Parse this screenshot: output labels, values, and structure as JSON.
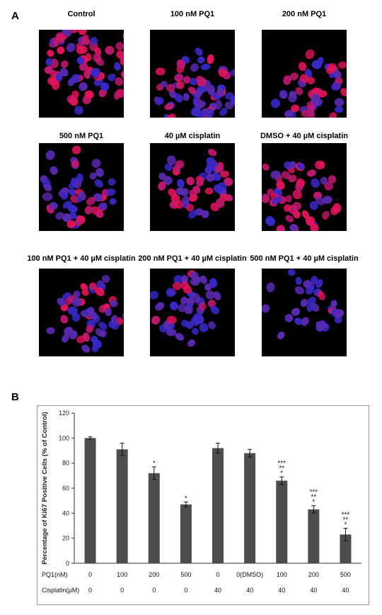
{
  "figure": {
    "panel_a_label": "A",
    "panel_b_label": "B"
  },
  "micrographs": [
    {
      "title": "Control",
      "red_ratio": 0.75,
      "density": "high"
    },
    {
      "title": "100 nM PQ1",
      "red_ratio": 0.35,
      "density": "high"
    },
    {
      "title": "200 nM PQ1",
      "red_ratio": 0.6,
      "density": "medium"
    },
    {
      "title": "500 nM PQ1",
      "red_ratio": 0.35,
      "density": "medium"
    },
    {
      "title": "40 µM cisplatin",
      "red_ratio": 0.6,
      "density": "medium"
    },
    {
      "title": "DMSO + 40 µM cisplatin",
      "red_ratio": 0.6,
      "density": "high"
    },
    {
      "title": "100 nM PQ1 + 40 µM cisplatin",
      "red_ratio": 0.25,
      "density": "medium"
    },
    {
      "title": "200 nM PQ1 + 40 µM cisplatin",
      "red_ratio": 0.15,
      "density": "medium"
    },
    {
      "title": "500 nM PQ1 + 40 µM cisplatin",
      "red_ratio": 0.1,
      "density": "low"
    }
  ],
  "chart_data": {
    "type": "bar",
    "ylabel": "Percentage of Ki67 Positive Cells (% of Control)",
    "ylim": [
      0,
      120
    ],
    "yticks": [
      0,
      20,
      40,
      60,
      80,
      100,
      120
    ],
    "bar_color": "#4d4d4d",
    "row_labels": [
      "PQ1(nM)",
      "Cisplatin(µM)"
    ],
    "pq1": [
      "0",
      "100",
      "200",
      "500",
      "0",
      "0(DMSO)",
      "100",
      "200",
      "500"
    ],
    "cisplatin": [
      "0",
      "0",
      "0",
      "0",
      "40",
      "40",
      "40",
      "40",
      "40"
    ],
    "values": [
      100,
      91,
      72,
      47,
      92,
      88,
      66,
      43,
      23
    ],
    "errors": [
      1,
      5,
      5,
      2,
      4,
      3,
      3,
      3,
      5
    ],
    "significance": [
      [],
      [],
      [
        "*"
      ],
      [
        "*"
      ],
      [],
      [],
      [
        "***",
        "**",
        "*"
      ],
      [
        "***",
        "**",
        "*"
      ],
      [
        "***",
        "**",
        "*"
      ]
    ]
  }
}
